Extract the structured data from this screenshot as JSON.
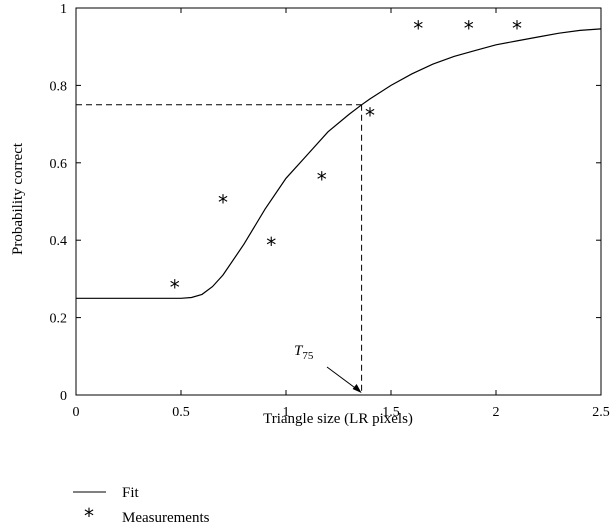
{
  "chart_data": {
    "type": "line",
    "title": "",
    "xlabel": "Triangle size (LR pixels)",
    "ylabel": "Probability correct",
    "xlim": [
      0,
      2.5
    ],
    "ylim": [
      0,
      1
    ],
    "xticks": [
      0,
      0.5,
      1,
      1.5,
      2,
      2.5
    ],
    "xtick_labels": [
      "0",
      "0.5",
      "1",
      "1.5",
      "2",
      "2.5"
    ],
    "yticks": [
      0,
      0.2,
      0.4,
      0.6,
      0.8,
      1
    ],
    "ytick_labels": [
      "0",
      "0.2",
      "0.4",
      "0.6",
      "0.8",
      "1"
    ],
    "grid": false,
    "legend_position": "below",
    "series": [
      {
        "name": "Fit",
        "kind": "line",
        "color": "#000000",
        "x": [
          0,
          0.2,
          0.4,
          0.5,
          0.55,
          0.6,
          0.65,
          0.7,
          0.8,
          0.9,
          1.0,
          1.1,
          1.2,
          1.3,
          1.36,
          1.4,
          1.5,
          1.6,
          1.7,
          1.8,
          1.9,
          2.0,
          2.1,
          2.2,
          2.3,
          2.4,
          2.5
        ],
        "y": [
          0.25,
          0.25,
          0.25,
          0.25,
          0.252,
          0.26,
          0.28,
          0.31,
          0.39,
          0.48,
          0.56,
          0.62,
          0.68,
          0.725,
          0.75,
          0.765,
          0.8,
          0.83,
          0.855,
          0.875,
          0.89,
          0.905,
          0.915,
          0.925,
          0.935,
          0.942,
          0.946
        ]
      },
      {
        "name": "Measurements",
        "kind": "scatter",
        "marker": "*",
        "color": "#000000",
        "x": [
          0.47,
          0.7,
          0.93,
          1.17,
          1.4,
          1.63,
          1.87,
          2.1
        ],
        "y": [
          0.28,
          0.5,
          0.39,
          0.56,
          0.725,
          0.95,
          0.95,
          0.95
        ]
      }
    ],
    "threshold": {
      "label": "T",
      "subscript": "75",
      "x": 1.36,
      "y": 0.75
    }
  }
}
